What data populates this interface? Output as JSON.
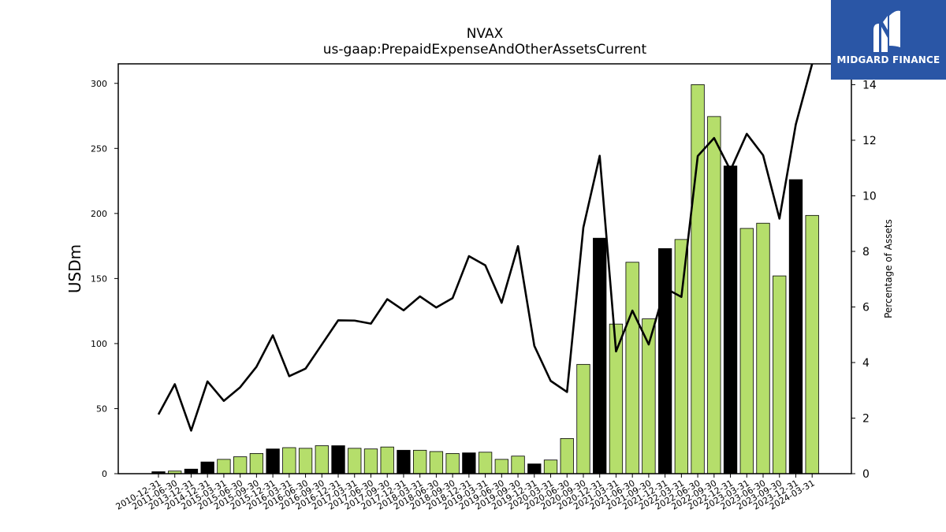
{
  "chart_data": {
    "type": "bar",
    "title": "NVAX",
    "subtitle": "us-gaap:PrepaidExpenseAndOtherAssetsCurrent",
    "ylabel": "USDm",
    "y2label": "Percentage of Assets",
    "ylim": [
      0,
      315
    ],
    "y2lim": [
      0,
      14.75
    ],
    "yticks": [
      0,
      50,
      100,
      150,
      200,
      250,
      300
    ],
    "y2ticks": [
      0,
      2,
      4,
      6,
      8,
      10,
      12,
      14
    ],
    "categories": [
      "2010-12-31",
      "2011-06-30",
      "2013-12-31",
      "2014-12-31",
      "2015-03-31",
      "2015-06-30",
      "2015-09-30",
      "2015-12-31",
      "2016-03-31",
      "2016-06-30",
      "2016-09-30",
      "2016-12-31",
      "2017-03-31",
      "2017-06-30",
      "2017-09-30",
      "2017-12-31",
      "2018-03-31",
      "2018-06-30",
      "2018-09-30",
      "2018-12-31",
      "2019-03-31",
      "2019-06-30",
      "2019-09-30",
      "2019-12-31",
      "2020-03-31",
      "2020-06-30",
      "2020-09-30",
      "2020-12-31",
      "2021-03-31",
      "2021-06-30",
      "2021-09-30",
      "2021-12-31",
      "2022-03-31",
      "2022-06-30",
      "2022-09-30",
      "2022-12-31",
      "2023-03-31",
      "2023-06-30",
      "2023-09-30",
      "2023-12-31",
      "2024-03-31"
    ],
    "series": [
      {
        "kind": "bar",
        "values": [
          1.5,
          2,
          3.5,
          9,
          11,
          13,
          15.5,
          19,
          20,
          19.5,
          21.5,
          21.5,
          19.5,
          19,
          20.5,
          18,
          18,
          17,
          15.5,
          16,
          16.5,
          11,
          13.5,
          7.5,
          10.5,
          27,
          84,
          181,
          115,
          162.5,
          119,
          173,
          180,
          299,
          274.5,
          236.5,
          188.5,
          192.5,
          152,
          226,
          198.5
        ],
        "colors": [
          "#000000",
          "#b5de6b",
          "#000000",
          "#000000",
          "#b5de6b",
          "#b5de6b",
          "#b5de6b",
          "#000000",
          "#b5de6b",
          "#b5de6b",
          "#b5de6b",
          "#000000",
          "#b5de6b",
          "#b5de6b",
          "#b5de6b",
          "#000000",
          "#b5de6b",
          "#b5de6b",
          "#b5de6b",
          "#000000",
          "#b5de6b",
          "#b5de6b",
          "#b5de6b",
          "#000000",
          "#b5de6b",
          "#b5de6b",
          "#b5de6b",
          "#000000",
          "#b5de6b",
          "#b5de6b",
          "#b5de6b",
          "#000000",
          "#b5de6b",
          "#b5de6b",
          "#b5de6b",
          "#000000",
          "#b5de6b",
          "#b5de6b",
          "#b5de6b",
          "#000000",
          "#b5de6b"
        ]
      },
      {
        "kind": "line",
        "axis": "right",
        "color": "#000000",
        "values": [
          2.13,
          3.22,
          1.55,
          3.32,
          2.62,
          3.11,
          3.85,
          4.98,
          3.51,
          3.78,
          4.65,
          5.52,
          5.51,
          5.4,
          6.28,
          5.88,
          6.38,
          5.98,
          6.32,
          7.83,
          7.5,
          6.15,
          8.19,
          4.6,
          3.34,
          2.94,
          8.86,
          11.44,
          4.4,
          5.87,
          4.65,
          6.68,
          6.36,
          11.43,
          12.08,
          10.92,
          12.23,
          11.46,
          9.18,
          12.57,
          14.75
        ]
      }
    ],
    "colors": {
      "green": "#b5de6b",
      "black": "#000000"
    }
  },
  "logo": {
    "name": "MIDGARD FINANCE",
    "icon": "midgard-logo-icon",
    "background": "#2a56a6"
  }
}
